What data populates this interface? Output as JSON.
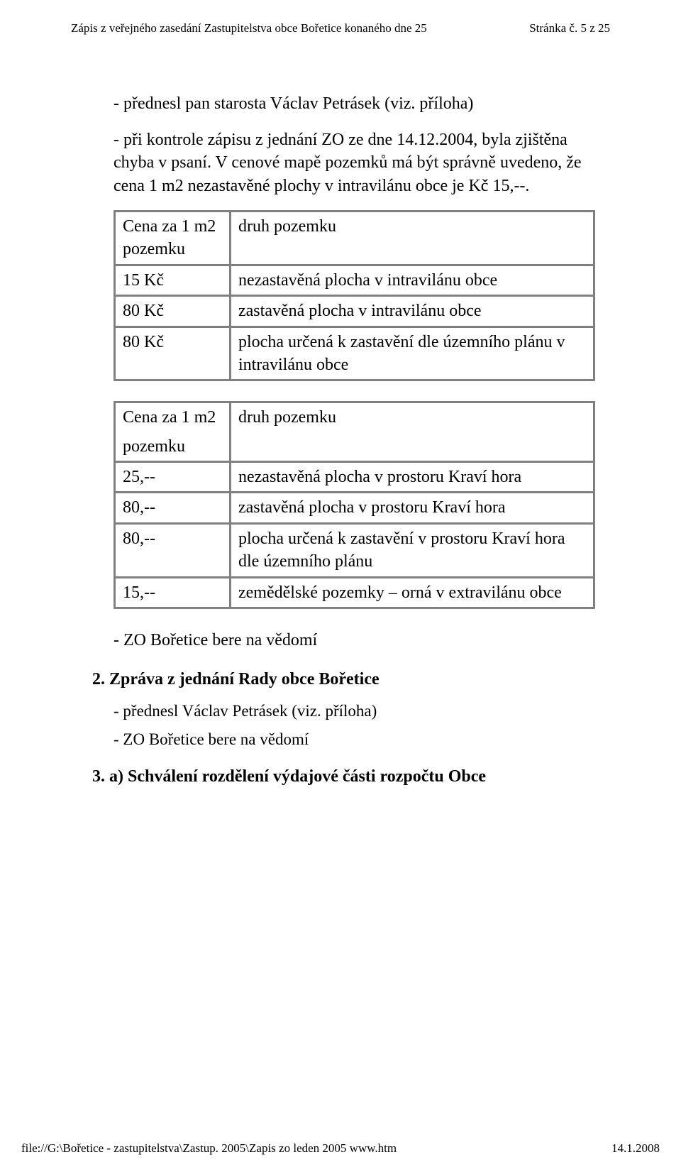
{
  "header": {
    "left": "Zápis z veřejného zasedání Zastupitelstva obce Bořetice konaného dne 25",
    "right": "Stránka č. 5 z 25"
  },
  "intro": {
    "line1": "- přednesl pan starosta Václav Petrásek (viz. příloha)",
    "line2": "- při kontrole zápisu z jednání ZO ze dne 14.12.2004, byla zjištěna chyba v psaní. V cenové mapě pozemků má být správně uvedeno, že cena 1 m2 nezastavěné plochy v intravilánu obce je Kč 15,--."
  },
  "table1": {
    "rows": [
      {
        "c1": "Cena za 1 m2 pozemku",
        "c2": "druh pozemku"
      },
      {
        "c1": "15 Kč",
        "c2": "nezastavěná plocha v intravilánu obce"
      },
      {
        "c1": "80 Kč",
        "c2": "zastavěná plocha v intravilánu obce"
      },
      {
        "c1": "80 Kč",
        "c2": "plocha určená k zastavění dle územního plánu v intravilánu obce"
      }
    ]
  },
  "table2": {
    "rows": [
      {
        "c1": "Cena za 1 m2",
        "c2": "druh pozemku"
      },
      {
        "c1": "pozemku",
        "c2": ""
      },
      {
        "c1": "25,--",
        "c2": "nezastavěná plocha v prostoru Kraví hora"
      },
      {
        "c1": "80,--",
        "c2": "zastavěná plocha v prostoru Kraví hora"
      },
      {
        "c1": "80,--",
        "c2": "plocha určená k zastavění v prostoru Kraví hora dle územního plánu"
      },
      {
        "c1": "15,--",
        "c2": "zemědělské pozemky – orná v extravilánu obce"
      }
    ]
  },
  "after_tables": {
    "note1": "- ZO Bořetice bere na vědomí"
  },
  "section2": {
    "heading": "2. Zpráva z jednání Rady obce Bořetice",
    "line1": "- přednesl Václav Petrásek (viz. příloha)",
    "line2": "- ZO Bořetice bere na vědomí"
  },
  "section3": {
    "heading": "3. a) Schválení rozdělení výdajové části rozpočtu Obce"
  },
  "footer": {
    "left": "file://G:\\Bořetice - zastupitelstva\\Zastup. 2005\\Zapis zo leden 2005 www.htm",
    "right": "14.1.2008"
  }
}
